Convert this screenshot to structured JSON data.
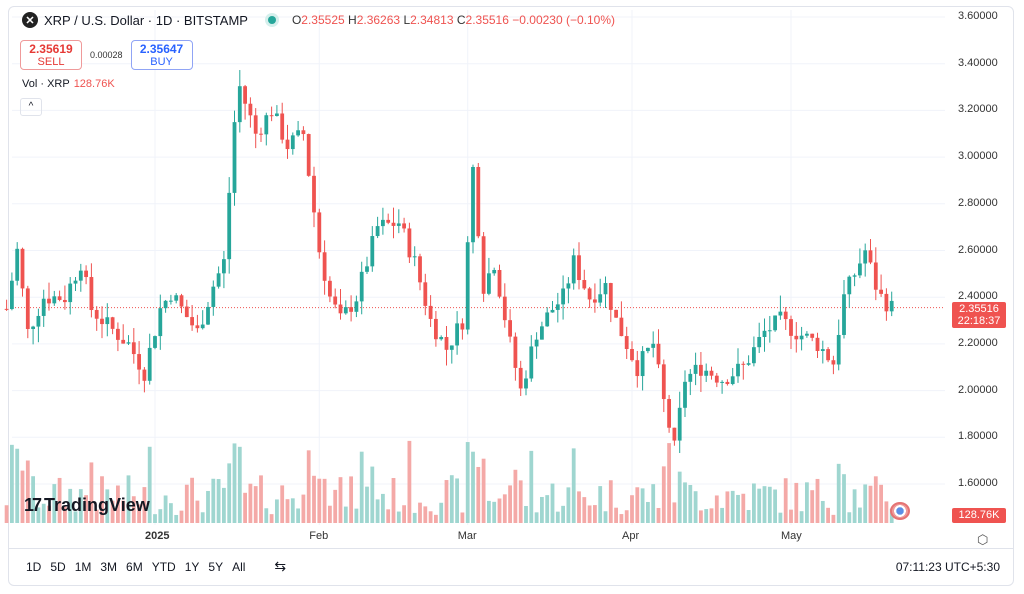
{
  "header": {
    "symbol_icon": "x-logo",
    "title": "XRP / U.S. Dollar · 1D · BITSTAMP",
    "ohlc": {
      "o_label": "O",
      "o": "2.35525",
      "h_label": "H",
      "h": "2.36263",
      "l_label": "L",
      "l": "2.34813",
      "c_label": "C",
      "c": "2.35516",
      "change": "−0.00230 (−0.10%)"
    }
  },
  "trade": {
    "sell_price": "2.35619",
    "sell_label": "SELL",
    "spread": "0.00028",
    "buy_price": "2.35647",
    "buy_label": "BUY"
  },
  "volume": {
    "label": "Vol · XRP",
    "value": "128.76K"
  },
  "collapse_icon": "chevron-up-icon",
  "price_axis": {
    "ticks": [
      "3.60000",
      "3.40000",
      "3.20000",
      "3.00000",
      "2.80000",
      "2.60000",
      "2.40000",
      "2.20000",
      "2.00000",
      "1.80000",
      "1.60000"
    ],
    "last_price": "2.35516",
    "countdown": "22:18:37",
    "volume_tag": "128.76K"
  },
  "time_axis": [
    "2025",
    "Feb",
    "Mar",
    "Apr",
    "May"
  ],
  "timeframes": [
    "1D",
    "5D",
    "1M",
    "3M",
    "6M",
    "YTD",
    "1Y",
    "5Y",
    "All"
  ],
  "clock": "07:11:23 UTC+5:30",
  "brand": "TradingView",
  "colors": {
    "up": "#26a69a",
    "down": "#ef5350",
    "vol_up": "#9fd6d0",
    "vol_down": "#f4a9a7"
  },
  "chart_data": {
    "type": "candlestick",
    "title": "XRP / U.S. Dollar · 1D · BITSTAMP",
    "ylim": [
      1.55,
      3.62
    ],
    "x_start_day": -28,
    "x_end_day": 139,
    "close_keypoints": [
      [
        -28,
        2.35
      ],
      [
        -26,
        2.6
      ],
      [
        -24,
        2.25
      ],
      [
        -21,
        2.4
      ],
      [
        -17,
        2.4
      ],
      [
        -14,
        2.55
      ],
      [
        -12,
        2.35
      ],
      [
        -9,
        2.28
      ],
      [
        -5,
        2.2
      ],
      [
        -2,
        2.08
      ],
      [
        1,
        2.35
      ],
      [
        3,
        2.42
      ],
      [
        5,
        2.35
      ],
      [
        8,
        2.25
      ],
      [
        11,
        2.45
      ],
      [
        13,
        2.55
      ],
      [
        15,
        3.15
      ],
      [
        16,
        3.3
      ],
      [
        19,
        3.1
      ],
      [
        22,
        3.2
      ],
      [
        25,
        3.05
      ],
      [
        28,
        3.1
      ],
      [
        31,
        2.6
      ],
      [
        33,
        2.4
      ],
      [
        35,
        2.3
      ],
      [
        38,
        2.4
      ],
      [
        42,
        2.7
      ],
      [
        46,
        2.72
      ],
      [
        49,
        2.55
      ],
      [
        52,
        2.3
      ],
      [
        55,
        2.18
      ],
      [
        58,
        2.3
      ],
      [
        60,
        2.95
      ],
      [
        62,
        2.45
      ],
      [
        64,
        2.55
      ],
      [
        67,
        2.2
      ],
      [
        69,
        2.0
      ],
      [
        72,
        2.25
      ],
      [
        75,
        2.35
      ],
      [
        77,
        2.4
      ],
      [
        79,
        2.55
      ],
      [
        82,
        2.4
      ],
      [
        85,
        2.45
      ],
      [
        87,
        2.3
      ],
      [
        91,
        2.1
      ],
      [
        94,
        2.2
      ],
      [
        96,
        1.95
      ],
      [
        98,
        1.75
      ],
      [
        100,
        2.05
      ],
      [
        103,
        2.1
      ],
      [
        107,
        2.05
      ],
      [
        111,
        2.1
      ],
      [
        115,
        2.25
      ],
      [
        118,
        2.3
      ],
      [
        121,
        2.25
      ],
      [
        125,
        2.2
      ],
      [
        128,
        2.12
      ],
      [
        130,
        2.4
      ],
      [
        132,
        2.5
      ],
      [
        134,
        2.6
      ],
      [
        136,
        2.45
      ],
      [
        137,
        2.4
      ],
      [
        139,
        2.355
      ]
    ]
  }
}
